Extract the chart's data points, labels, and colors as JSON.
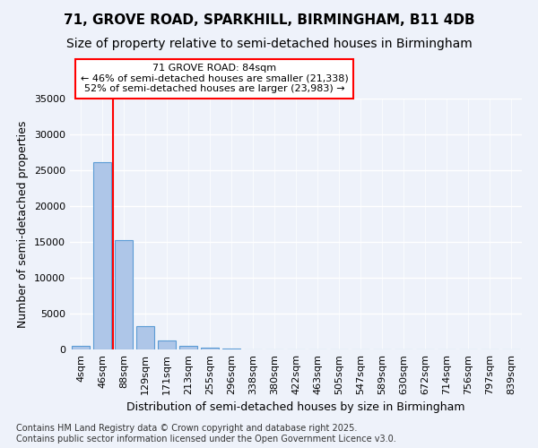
{
  "title": "71, GROVE ROAD, SPARKHILL, BIRMINGHAM, B11 4DB",
  "subtitle": "Size of property relative to semi-detached houses in Birmingham",
  "xlabel": "Distribution of semi-detached houses by size in Birmingham",
  "ylabel": "Number of semi-detached properties",
  "categories": [
    "4sqm",
    "46sqm",
    "88sqm",
    "129sqm",
    "171sqm",
    "213sqm",
    "255sqm",
    "296sqm",
    "338sqm",
    "380sqm",
    "422sqm",
    "463sqm",
    "505sqm",
    "547sqm",
    "589sqm",
    "630sqm",
    "672sqm",
    "714sqm",
    "756sqm",
    "797sqm",
    "839sqm"
  ],
  "values": [
    500,
    26100,
    15200,
    3300,
    1200,
    500,
    200,
    100,
    0,
    0,
    0,
    0,
    0,
    0,
    0,
    0,
    0,
    0,
    0,
    0,
    0
  ],
  "bar_color": "#aec6e8",
  "bar_edge_color": "#5b9bd5",
  "background_color": "#eef2fa",
  "red_line_x": 1.5,
  "annotation_title": "71 GROVE ROAD: 84sqm",
  "annotation_line1": "← 46% of semi-detached houses are smaller (21,338)",
  "annotation_line2": "52% of semi-detached houses are larger (23,983) →",
  "ylim": [
    0,
    35000
  ],
  "yticks": [
    0,
    5000,
    10000,
    15000,
    20000,
    25000,
    30000,
    35000
  ],
  "footer_line1": "Contains HM Land Registry data © Crown copyright and database right 2025.",
  "footer_line2": "Contains public sector information licensed under the Open Government Licence v3.0.",
  "title_fontsize": 11,
  "subtitle_fontsize": 10,
  "axis_label_fontsize": 9,
  "tick_fontsize": 8,
  "footer_fontsize": 7,
  "annotation_fontsize": 8
}
